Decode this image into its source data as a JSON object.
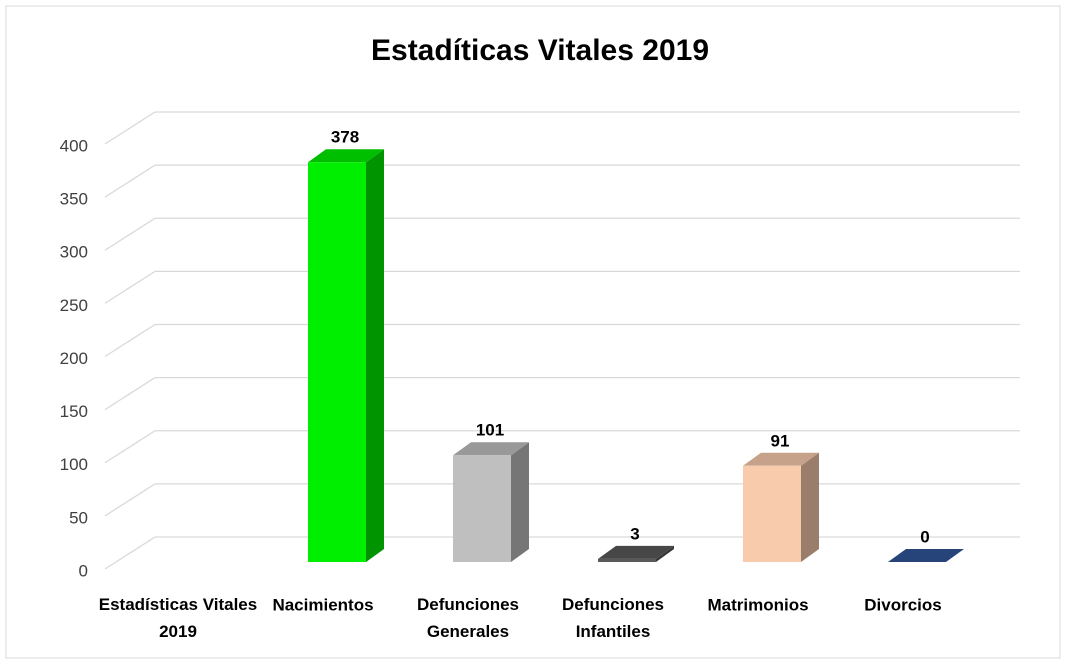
{
  "chart_data": {
    "type": "bar3d",
    "title": "Estadíticas Vitales 2019",
    "categories": [
      "Estadísticas Vitales 2019",
      "Nacimientos",
      "Defunciones Generales",
      "Defunciones Infantiles",
      "Matrimonios",
      "Divorcios"
    ],
    "values": [
      null,
      378,
      101,
      3,
      91,
      0
    ],
    "colors": [
      null,
      "#00ee00",
      "#bfbfbf",
      "#595959",
      "#f8cbad",
      "#2f5597"
    ],
    "ylim": [
      0,
      400
    ],
    "yticks": [
      0,
      50,
      100,
      150,
      200,
      250,
      300,
      350,
      400
    ],
    "grid": true
  }
}
